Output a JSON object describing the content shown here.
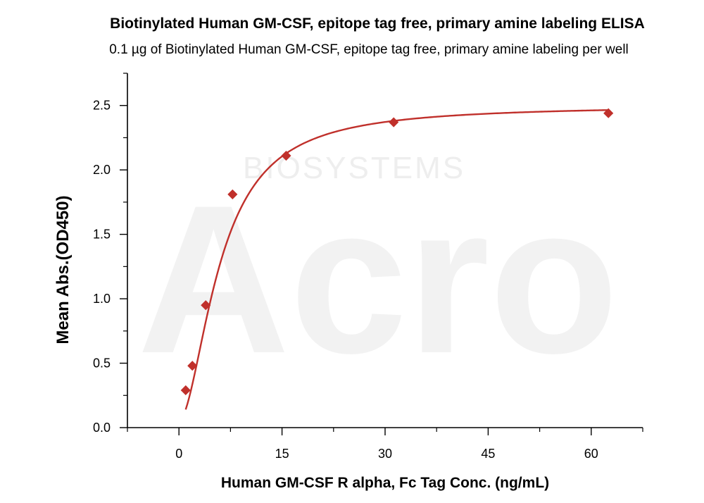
{
  "chart_data": {
    "type": "scatter",
    "title": "Biotinylated Human GM-CSF, epitope tag free, primary amine labeling ELISA",
    "subtitle": "0.1 µg of Biotinylated Human GM-CSF, epitope tag free, primary amine labeling per well",
    "xlabel": "Human GM-CSF R alpha, Fc Tag Conc. (ng/mL)",
    "ylabel": "Mean Abs.(OD450)",
    "xlim": [
      -7.5,
      67.5
    ],
    "ylim": [
      0,
      2.75
    ],
    "x_ticks": [
      0,
      15,
      30,
      45,
      60
    ],
    "y_ticks": [
      0.0,
      0.5,
      1.0,
      1.5,
      2.0,
      2.5
    ],
    "x_tick_labels": [
      "0",
      "15",
      "30",
      "45",
      "60"
    ],
    "y_tick_labels": [
      "0.0",
      "0.5",
      "1.0",
      "1.5",
      "2.0",
      "2.5"
    ],
    "grid": false,
    "series": [
      {
        "color": "#c0302b",
        "marker": "diamond",
        "x": [
          0.98,
          1.95,
          3.9,
          7.8,
          15.6,
          31.25,
          62.5
        ],
        "y": [
          0.29,
          0.48,
          0.95,
          1.81,
          2.11,
          2.37,
          2.44
        ],
        "fit": "4PL",
        "fit_params": {
          "bottom": 0.05,
          "top": 2.5,
          "ec50": 6.0,
          "hill": 1.8
        }
      }
    ]
  },
  "watermark": {
    "logo_text": "Acro",
    "company_text": "BIOSYSTEMS"
  }
}
